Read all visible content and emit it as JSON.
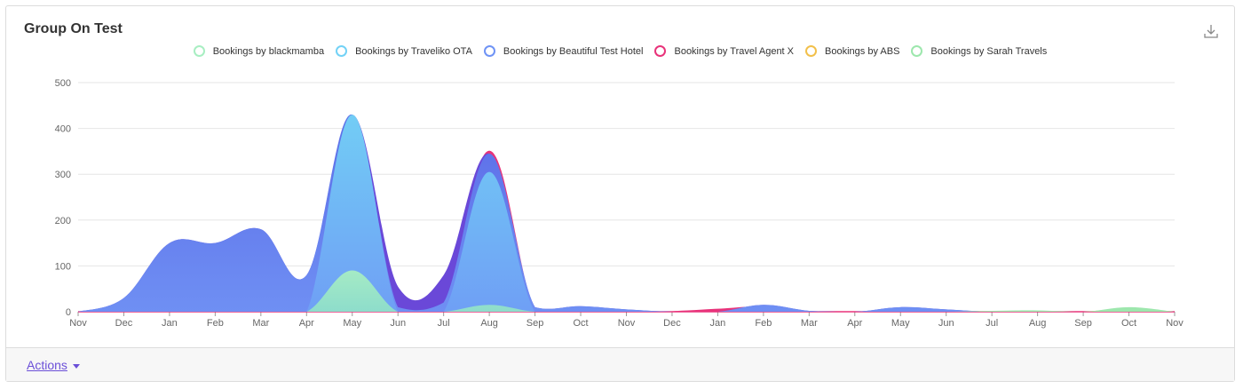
{
  "card": {
    "title": "Group On Test",
    "download_icon": "download-icon",
    "actions_label": "Actions"
  },
  "colors": {
    "blackmamba": "#a8eec2",
    "traveliko": "#73d2f6",
    "beautiful": "#6f93f5",
    "travelagent": "#e8337a",
    "abs": "#f2c04b",
    "sarah": "#9de7ad",
    "purple_fill": "#6a48d8"
  },
  "chart_data": {
    "type": "area",
    "title": "Group On Test",
    "x": [
      "Nov",
      "Dec",
      "Jan",
      "Feb",
      "Mar",
      "Apr",
      "May",
      "Jun",
      "Jul",
      "Aug",
      "Sep",
      "Oct",
      "Nov",
      "Dec",
      "Jan",
      "Feb",
      "Mar",
      "Apr",
      "May",
      "Jun",
      "Jul",
      "Aug",
      "Sep",
      "Oct",
      "Nov"
    ],
    "ylim": [
      0,
      500
    ],
    "yticks": [
      0,
      100,
      200,
      300,
      400,
      500
    ],
    "grid": true,
    "legend_position": "top",
    "series": [
      {
        "name": "Bookings by blackmamba",
        "key": "blackmamba",
        "values": [
          0,
          0,
          0,
          0,
          0,
          0,
          90,
          0,
          0,
          15,
          0,
          0,
          0,
          0,
          0,
          0,
          0,
          0,
          0,
          0,
          0,
          0,
          0,
          0,
          0
        ]
      },
      {
        "name": "Bookings by Traveliko OTA",
        "key": "traveliko",
        "values": [
          0,
          0,
          0,
          0,
          0,
          0,
          430,
          0,
          0,
          305,
          0,
          0,
          0,
          0,
          0,
          0,
          0,
          0,
          0,
          0,
          0,
          0,
          0,
          0,
          0
        ]
      },
      {
        "name": "Bookings by Beautiful Test Hotel",
        "key": "beautiful",
        "values": [
          0,
          30,
          150,
          150,
          180,
          80,
          430,
          55,
          80,
          345,
          10,
          12,
          5,
          0,
          0,
          15,
          2,
          0,
          10,
          5,
          0,
          0,
          0,
          5,
          0
        ]
      },
      {
        "name": "Bookings by Travel Agent X",
        "key": "travelagent",
        "values": [
          0,
          0,
          0,
          0,
          0,
          0,
          0,
          0,
          0,
          350,
          0,
          0,
          0,
          0,
          5,
          10,
          0,
          0,
          0,
          0,
          0,
          0,
          0,
          0,
          0
        ]
      },
      {
        "name": "Bookings by ABS",
        "key": "abs",
        "values": [
          0,
          0,
          0,
          0,
          0,
          0,
          0,
          0,
          0,
          0,
          0,
          0,
          0,
          0,
          0,
          0,
          0,
          0,
          0,
          0,
          0,
          0,
          0,
          8,
          0
        ]
      },
      {
        "name": "Bookings by Sarah Travels",
        "key": "sarah",
        "values": [
          0,
          0,
          0,
          0,
          0,
          0,
          0,
          0,
          0,
          0,
          0,
          0,
          0,
          0,
          0,
          0,
          0,
          0,
          0,
          0,
          2,
          3,
          0,
          10,
          0
        ]
      }
    ]
  }
}
